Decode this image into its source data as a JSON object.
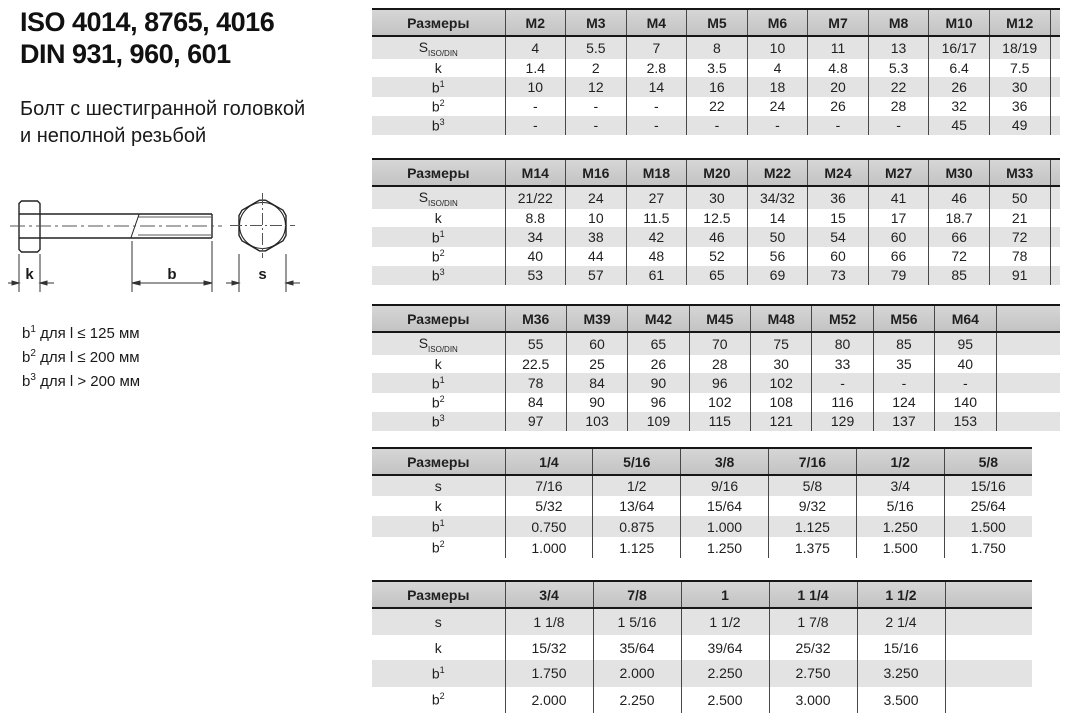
{
  "title": {
    "line1": "ISO 4014, 8765, 4016",
    "line2": "DIN 931, 960, 601",
    "subtitle1": "Болт с шестигранной головкой",
    "subtitle2": "и неполной резьбой"
  },
  "notes": [
    {
      "base": "b",
      "sup": "1",
      "text": " для l ≤ 125 мм"
    },
    {
      "base": "b",
      "sup": "2",
      "text": " для l ≤ 200 мм"
    },
    {
      "base": "b",
      "sup": "3",
      "text": " для l > 200 мм"
    }
  ],
  "drawing": {
    "dim_k": "k",
    "dim_b": "b",
    "dim_s": "s"
  },
  "tables": [
    {
      "corner": "Размеры",
      "columns": [
        "M2",
        "M3",
        "M4",
        "M5",
        "M6",
        "M7",
        "M8",
        "M10",
        "M12"
      ],
      "rows": [
        {
          "label": {
            "base": "S",
            "sub": "ISO/DIN"
          },
          "values": [
            "4",
            "5.5",
            "7",
            "8",
            "10",
            "11",
            "13",
            "16/17",
            "18/19"
          ]
        },
        {
          "label": {
            "base": "k"
          },
          "values": [
            "1.4",
            "2",
            "2.8",
            "3.5",
            "4",
            "4.8",
            "5.3",
            "6.4",
            "7.5"
          ]
        },
        {
          "label": {
            "base": "b",
            "sup": "1"
          },
          "values": [
            "10",
            "12",
            "14",
            "16",
            "18",
            "20",
            "22",
            "26",
            "30"
          ]
        },
        {
          "label": {
            "base": "b",
            "sup": "2"
          },
          "values": [
            "-",
            "-",
            "-",
            "22",
            "24",
            "26",
            "28",
            "32",
            "36"
          ]
        },
        {
          "label": {
            "base": "b",
            "sup": "3"
          },
          "values": [
            "-",
            "-",
            "-",
            "-",
            "-",
            "-",
            "-",
            "45",
            "49"
          ]
        }
      ]
    },
    {
      "corner": "Размеры",
      "columns": [
        "M14",
        "M16",
        "M18",
        "M20",
        "M22",
        "M24",
        "M27",
        "M30",
        "M33"
      ],
      "rows": [
        {
          "label": {
            "base": "S",
            "sub": "ISO/DIN"
          },
          "values": [
            "21/22",
            "24",
            "27",
            "30",
            "34/32",
            "36",
            "41",
            "46",
            "50"
          ]
        },
        {
          "label": {
            "base": "k"
          },
          "values": [
            "8.8",
            "10",
            "11.5",
            "12.5",
            "14",
            "15",
            "17",
            "18.7",
            "21"
          ]
        },
        {
          "label": {
            "base": "b",
            "sup": "1"
          },
          "values": [
            "34",
            "38",
            "42",
            "46",
            "50",
            "54",
            "60",
            "66",
            "72"
          ]
        },
        {
          "label": {
            "base": "b",
            "sup": "2"
          },
          "values": [
            "40",
            "44",
            "48",
            "52",
            "56",
            "60",
            "66",
            "72",
            "78"
          ]
        },
        {
          "label": {
            "base": "b",
            "sup": "3"
          },
          "values": [
            "53",
            "57",
            "61",
            "65",
            "69",
            "73",
            "79",
            "85",
            "91"
          ]
        }
      ]
    },
    {
      "corner": "Размеры",
      "columns": [
        "M36",
        "M39",
        "M42",
        "M45",
        "M48",
        "M52",
        "M56",
        "M64"
      ],
      "rows": [
        {
          "label": {
            "base": "S",
            "sub": "ISO/DIN"
          },
          "values": [
            "55",
            "60",
            "65",
            "70",
            "75",
            "80",
            "85",
            "95"
          ]
        },
        {
          "label": {
            "base": "k"
          },
          "values": [
            "22.5",
            "25",
            "26",
            "28",
            "30",
            "33",
            "35",
            "40"
          ]
        },
        {
          "label": {
            "base": "b",
            "sup": "1"
          },
          "values": [
            "78",
            "84",
            "90",
            "96",
            "102",
            "-",
            "-",
            "-"
          ]
        },
        {
          "label": {
            "base": "b",
            "sup": "2"
          },
          "values": [
            "84",
            "90",
            "96",
            "102",
            "108",
            "116",
            "124",
            "140"
          ]
        },
        {
          "label": {
            "base": "b",
            "sup": "3"
          },
          "values": [
            "97",
            "103",
            "109",
            "115",
            "121",
            "129",
            "137",
            "153"
          ]
        }
      ]
    },
    {
      "corner": "Размеры",
      "columns": [
        "1/4",
        "5/16",
        "3/8",
        "7/16",
        "1/2",
        "5/8"
      ],
      "rows": [
        {
          "label": {
            "base": "s"
          },
          "values": [
            "7/16",
            "1/2",
            "9/16",
            "5/8",
            "3/4",
            "15/16"
          ]
        },
        {
          "label": {
            "base": "k"
          },
          "values": [
            "5/32",
            "13/64",
            "15/64",
            "9/32",
            "5/16",
            "25/64"
          ]
        },
        {
          "label": {
            "base": "b",
            "sup": "1"
          },
          "values": [
            "0.750",
            "0.875",
            "1.000",
            "1.125",
            "1.250",
            "1.500"
          ]
        },
        {
          "label": {
            "base": "b",
            "sup": "2"
          },
          "values": [
            "1.000",
            "1.125",
            "1.250",
            "1.375",
            "1.500",
            "1.750"
          ]
        }
      ]
    },
    {
      "corner": "Размеры",
      "columns": [
        "3/4",
        "7/8",
        "1",
        "1 1/4",
        "1 1/2"
      ],
      "rows": [
        {
          "label": {
            "base": "s"
          },
          "values": [
            "1 1/8",
            "1 5/16",
            "1 1/2",
            "1 7/8",
            "2 1/4"
          ]
        },
        {
          "label": {
            "base": "k"
          },
          "values": [
            "15/32",
            "35/64",
            "39/64",
            "25/32",
            "15/16"
          ]
        },
        {
          "label": {
            "base": "b",
            "sup": "1"
          },
          "values": [
            "1.750",
            "2.000",
            "2.250",
            "2.750",
            "3.250"
          ]
        },
        {
          "label": {
            "base": "b",
            "sup": "2"
          },
          "values": [
            "2.000",
            "2.250",
            "2.500",
            "3.000",
            "3.500"
          ]
        }
      ]
    }
  ]
}
